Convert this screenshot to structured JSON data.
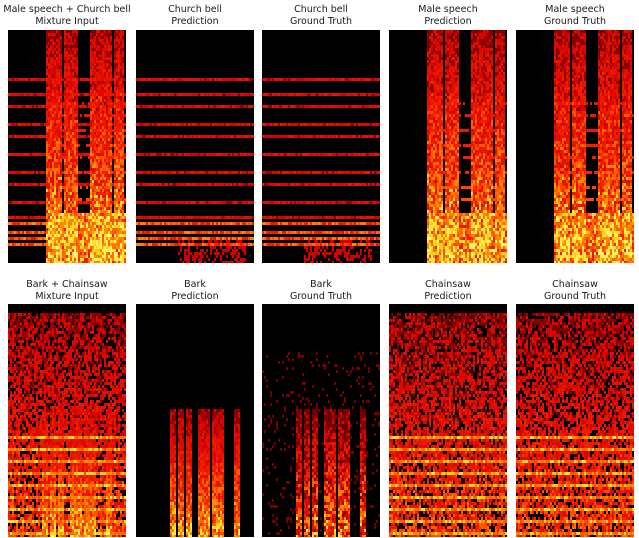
{
  "figure": {
    "rows": [
      {
        "panels": [
          {
            "line1": "Male speech + Church bell",
            "line2": "Mixture Input",
            "kind": "speech_bell"
          },
          {
            "line1": "Church bell",
            "line2": "Prediction",
            "kind": "bell"
          },
          {
            "line1": "Church bell",
            "line2": "Ground Truth",
            "kind": "bell"
          },
          {
            "line1": "Male speech",
            "line2": "Prediction",
            "kind": "speech"
          },
          {
            "line1": "Male speech",
            "line2": "Ground Truth",
            "kind": "speech"
          }
        ]
      },
      {
        "panels": [
          {
            "line1": "Bark + Chainsaw",
            "line2": "Mixture Input",
            "kind": "saw_bark"
          },
          {
            "line1": "Bark",
            "line2": "Prediction",
            "kind": "bark"
          },
          {
            "line1": "Bark",
            "line2": "Ground Truth",
            "kind": "bark_gt"
          },
          {
            "line1": "Chainsaw",
            "line2": "Prediction",
            "kind": "saw"
          },
          {
            "line1": "Chainsaw",
            "line2": "Ground Truth",
            "kind": "saw"
          }
        ]
      }
    ]
  },
  "colors": {
    "background": "#000000",
    "low": "#5a0000",
    "mid": "#d21a00",
    "high": "#ff8a00",
    "peak": "#fff27a"
  }
}
